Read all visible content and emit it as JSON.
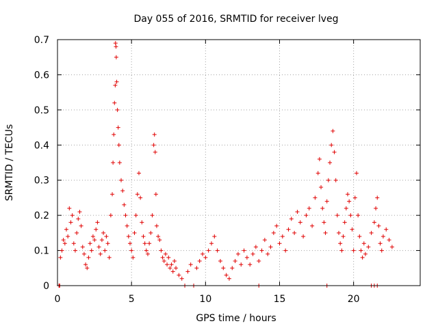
{
  "chart_data": {
    "type": "scatter",
    "title": "Day 055 of 2016, SRMTID for receiver lveg",
    "xlabel": "GPS time / hours",
    "ylabel": "SRMTID / TECUs",
    "xlim": [
      0,
      24.5
    ],
    "ylim": [
      0,
      0.7
    ],
    "xticks": [
      0,
      5,
      10,
      15,
      20
    ],
    "xtick_labels": [
      "0",
      "5",
      "10",
      "15",
      "20"
    ],
    "yticks": [
      0,
      0.1,
      0.2,
      0.3,
      0.4,
      0.5,
      0.6,
      0.7
    ],
    "ytick_labels": [
      "0",
      "0.1",
      "0.2",
      "0.3",
      "0.4",
      "0.5",
      "0.6",
      "0.7"
    ],
    "grid": true,
    "marker": "+",
    "color": "#e00000",
    "series": [
      {
        "name": "SRMTID",
        "points": [
          [
            0.1,
            0.0
          ],
          [
            0.15,
            0.0
          ],
          [
            0.2,
            0.08
          ],
          [
            0.3,
            0.1
          ],
          [
            0.4,
            0.13
          ],
          [
            0.5,
            0.12
          ],
          [
            0.6,
            0.16
          ],
          [
            0.7,
            0.14
          ],
          [
            0.8,
            0.22
          ],
          [
            0.9,
            0.18
          ],
          [
            1.0,
            0.2
          ],
          [
            1.1,
            0.12
          ],
          [
            1.2,
            0.1
          ],
          [
            1.3,
            0.15
          ],
          [
            1.4,
            0.19
          ],
          [
            1.5,
            0.21
          ],
          [
            1.6,
            0.17
          ],
          [
            1.7,
            0.11
          ],
          [
            1.8,
            0.09
          ],
          [
            1.9,
            0.06
          ],
          [
            2.0,
            0.05
          ],
          [
            2.1,
            0.08
          ],
          [
            2.2,
            0.12
          ],
          [
            2.3,
            0.1
          ],
          [
            2.4,
            0.14
          ],
          [
            2.5,
            0.13
          ],
          [
            2.6,
            0.16
          ],
          [
            2.7,
            0.18
          ],
          [
            2.8,
            0.11
          ],
          [
            2.9,
            0.09
          ],
          [
            3.0,
            0.13
          ],
          [
            3.1,
            0.15
          ],
          [
            3.2,
            0.1
          ],
          [
            3.3,
            0.14
          ],
          [
            3.4,
            0.12
          ],
          [
            3.5,
            0.08
          ],
          [
            3.6,
            0.2
          ],
          [
            3.7,
            0.26
          ],
          [
            3.75,
            0.35
          ],
          [
            3.8,
            0.43
          ],
          [
            3.85,
            0.52
          ],
          [
            3.9,
            0.57
          ],
          [
            3.92,
            0.69
          ],
          [
            3.95,
            0.68
          ],
          [
            3.97,
            0.65
          ],
          [
            4.0,
            0.58
          ],
          [
            4.05,
            0.5
          ],
          [
            4.1,
            0.45
          ],
          [
            4.15,
            0.4
          ],
          [
            4.2,
            0.35
          ],
          [
            4.3,
            0.3
          ],
          [
            4.4,
            0.27
          ],
          [
            4.5,
            0.23
          ],
          [
            4.6,
            0.2
          ],
          [
            4.7,
            0.17
          ],
          [
            4.8,
            0.14
          ],
          [
            4.9,
            0.12
          ],
          [
            5.0,
            0.1
          ],
          [
            5.1,
            0.08
          ],
          [
            5.2,
            0.15
          ],
          [
            5.3,
            0.2
          ],
          [
            5.4,
            0.26
          ],
          [
            5.5,
            0.32
          ],
          [
            5.6,
            0.25
          ],
          [
            5.7,
            0.18
          ],
          [
            5.8,
            0.14
          ],
          [
            5.9,
            0.12
          ],
          [
            6.0,
            0.1
          ],
          [
            6.1,
            0.09
          ],
          [
            6.2,
            0.12
          ],
          [
            6.3,
            0.15
          ],
          [
            6.4,
            0.2
          ],
          [
            6.5,
            0.4
          ],
          [
            6.55,
            0.43
          ],
          [
            6.6,
            0.38
          ],
          [
            6.65,
            0.26
          ],
          [
            6.7,
            0.17
          ],
          [
            6.8,
            0.14
          ],
          [
            6.9,
            0.13
          ],
          [
            7.0,
            0.1
          ],
          [
            7.1,
            0.08
          ],
          [
            7.2,
            0.07
          ],
          [
            7.3,
            0.09
          ],
          [
            7.4,
            0.06
          ],
          [
            7.5,
            0.08
          ],
          [
            7.6,
            0.05
          ],
          [
            7.7,
            0.06
          ],
          [
            7.8,
            0.04
          ],
          [
            7.9,
            0.07
          ],
          [
            8.0,
            0.05
          ],
          [
            8.2,
            0.03
          ],
          [
            8.4,
            0.02
          ],
          [
            8.6,
            0.0
          ],
          [
            8.8,
            0.04
          ],
          [
            9.0,
            0.06
          ],
          [
            9.2,
            0.0
          ],
          [
            9.4,
            0.05
          ],
          [
            9.6,
            0.07
          ],
          [
            9.8,
            0.09
          ],
          [
            10.0,
            0.08
          ],
          [
            10.2,
            0.1
          ],
          [
            10.4,
            0.12
          ],
          [
            10.6,
            0.14
          ],
          [
            10.8,
            0.1
          ],
          [
            11.0,
            0.07
          ],
          [
            11.2,
            0.05
          ],
          [
            11.4,
            0.03
          ],
          [
            11.6,
            0.02
          ],
          [
            11.8,
            0.05
          ],
          [
            12.0,
            0.07
          ],
          [
            12.2,
            0.09
          ],
          [
            12.4,
            0.06
          ],
          [
            12.6,
            0.1
          ],
          [
            12.8,
            0.08
          ],
          [
            13.0,
            0.06
          ],
          [
            13.2,
            0.09
          ],
          [
            13.4,
            0.11
          ],
          [
            13.6,
            0.07
          ],
          [
            13.8,
            0.1
          ],
          [
            14.0,
            0.13
          ],
          [
            14.2,
            0.09
          ],
          [
            14.4,
            0.11
          ],
          [
            14.6,
            0.15
          ],
          [
            14.8,
            0.17
          ],
          [
            15.0,
            0.12
          ],
          [
            15.2,
            0.14
          ],
          [
            15.4,
            0.1
          ],
          [
            15.6,
            0.16
          ],
          [
            15.8,
            0.19
          ],
          [
            16.0,
            0.15
          ],
          [
            16.2,
            0.21
          ],
          [
            16.4,
            0.18
          ],
          [
            16.6,
            0.14
          ],
          [
            16.8,
            0.2
          ],
          [
            17.0,
            0.22
          ],
          [
            17.2,
            0.17
          ],
          [
            17.4,
            0.25
          ],
          [
            17.6,
            0.32
          ],
          [
            17.7,
            0.36
          ],
          [
            17.8,
            0.28
          ],
          [
            17.9,
            0.22
          ],
          [
            18.0,
            0.18
          ],
          [
            18.1,
            0.15
          ],
          [
            18.2,
            0.24
          ],
          [
            18.3,
            0.3
          ],
          [
            18.4,
            0.35
          ],
          [
            18.5,
            0.4
          ],
          [
            18.6,
            0.44
          ],
          [
            18.7,
            0.38
          ],
          [
            18.8,
            0.3
          ],
          [
            18.9,
            0.2
          ],
          [
            19.0,
            0.15
          ],
          [
            19.1,
            0.12
          ],
          [
            19.2,
            0.1
          ],
          [
            19.3,
            0.14
          ],
          [
            19.4,
            0.18
          ],
          [
            19.5,
            0.22
          ],
          [
            19.6,
            0.26
          ],
          [
            19.7,
            0.24
          ],
          [
            19.8,
            0.2
          ],
          [
            19.9,
            0.16
          ],
          [
            20.0,
            0.1
          ],
          [
            20.1,
            0.25
          ],
          [
            20.2,
            0.32
          ],
          [
            20.3,
            0.2
          ],
          [
            20.4,
            0.14
          ],
          [
            20.5,
            0.1
          ],
          [
            20.6,
            0.08
          ],
          [
            20.7,
            0.12
          ],
          [
            20.8,
            0.09
          ],
          [
            21.0,
            0.11
          ],
          [
            21.2,
            0.15
          ],
          [
            21.4,
            0.18
          ],
          [
            21.5,
            0.22
          ],
          [
            21.6,
            0.25
          ],
          [
            21.7,
            0.17
          ],
          [
            21.8,
            0.12
          ],
          [
            21.9,
            0.1
          ],
          [
            22.0,
            0.14
          ],
          [
            22.2,
            0.16
          ],
          [
            22.4,
            0.13
          ],
          [
            22.6,
            0.11
          ],
          [
            21.2,
            0.0
          ],
          [
            21.4,
            0.0
          ],
          [
            21.6,
            0.0
          ],
          [
            18.2,
            0.0
          ],
          [
            13.6,
            0.0
          ],
          [
            0.12,
            0.0
          ]
        ]
      }
    ]
  }
}
